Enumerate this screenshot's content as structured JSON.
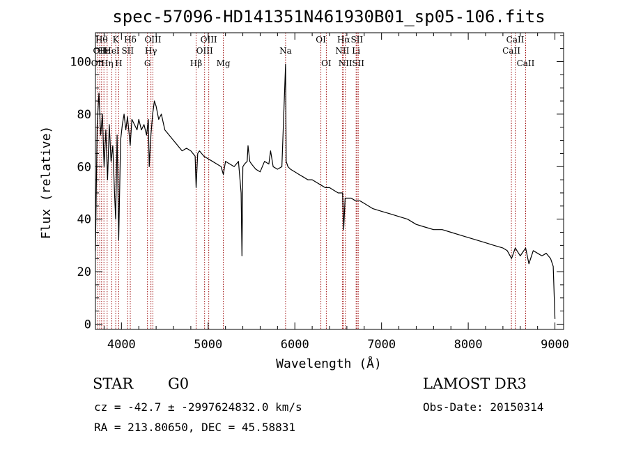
{
  "chart_data": {
    "type": "line",
    "title": "spec-57096-HD141351N461930B01_sp05-106.fits",
    "xlabel": "Wavelength (Å)",
    "ylabel": "Flux (relative)",
    "xlim": [
      3700,
      9100
    ],
    "ylim": [
      -2,
      111
    ],
    "xticks": [
      4000,
      5000,
      6000,
      7000,
      8000,
      9000
    ],
    "yticks": [
      0,
      20,
      40,
      60,
      80,
      100
    ],
    "grid": false,
    "series": [
      {
        "name": "spectrum",
        "x": [
          3700,
          3720,
          3740,
          3760,
          3780,
          3800,
          3820,
          3840,
          3860,
          3880,
          3900,
          3920,
          3933,
          3950,
          3968,
          3990,
          4010,
          4030,
          4050,
          4070,
          4090,
          4101,
          4120,
          4150,
          4180,
          4200,
          4230,
          4260,
          4290,
          4310,
          4320,
          4340,
          4360,
          4380,
          4400,
          4430,
          4460,
          4500,
          4550,
          4600,
          4650,
          4700,
          4750,
          4800,
          4850,
          4861,
          4880,
          4900,
          4950,
          5000,
          5050,
          5100,
          5150,
          5175,
          5200,
          5250,
          5300,
          5350,
          5380,
          5390,
          5400,
          5420,
          5450,
          5460,
          5480,
          5500,
          5550,
          5600,
          5650,
          5700,
          5720,
          5750,
          5800,
          5850,
          5893,
          5900,
          5920,
          5950,
          6000,
          6050,
          6100,
          6150,
          6200,
          6250,
          6300,
          6350,
          6400,
          6450,
          6500,
          6550,
          6563,
          6580,
          6600,
          6650,
          6700,
          6750,
          6800,
          6900,
          7000,
          7100,
          7200,
          7300,
          7400,
          7500,
          7600,
          7700,
          7800,
          7900,
          8000,
          8100,
          8200,
          8300,
          8400,
          8450,
          8500,
          8542,
          8600,
          8662,
          8700,
          8750,
          8800,
          8850,
          8900,
          8950,
          8980,
          9000
        ],
        "y": [
          28,
          76,
          88,
          72,
          80,
          60,
          74,
          55,
          76,
          62,
          68,
          50,
          40,
          72,
          32,
          70,
          76,
          80,
          74,
          79,
          72,
          68,
          78,
          76,
          74,
          78,
          74,
          76,
          72,
          78,
          60,
          72,
          80,
          85,
          83,
          78,
          80,
          74,
          72,
          70,
          68,
          66,
          67,
          66,
          64,
          52,
          65,
          66,
          64,
          63,
          62,
          61,
          60,
          57,
          62,
          61,
          60,
          62,
          50,
          26,
          60,
          61,
          62,
          68,
          62,
          61,
          59,
          58,
          62,
          61,
          66,
          60,
          59,
          60,
          99,
          62,
          60,
          59,
          58,
          57,
          56,
          55,
          55,
          54,
          53,
          52,
          52,
          51,
          50,
          50,
          36,
          48,
          48,
          48,
          47,
          47,
          46,
          44,
          43,
          42,
          41,
          40,
          38,
          37,
          36,
          36,
          35,
          34,
          33,
          32,
          31,
          30,
          29,
          28,
          25,
          29,
          26,
          29,
          23,
          28,
          27,
          26,
          27,
          25,
          22,
          2
        ]
      }
    ],
    "lines": [
      {
        "x": 3727,
        "labels": [
          "OII"
        ],
        "row": 3
      },
      {
        "x": 3750,
        "labels": [
          "OII"
        ],
        "row": 2
      },
      {
        "x": 3771,
        "labels": [
          "Hθ"
        ],
        "row": 1
      },
      {
        "x": 3798,
        "labels": [
          "Hε"
        ],
        "row": 2
      },
      {
        "x": 3835,
        "labels": [
          "Hη"
        ],
        "row": 3
      },
      {
        "x": 3889,
        "labels": [
          "HeI"
        ],
        "row": 2
      },
      {
        "x": 3934,
        "labels": [
          "K"
        ],
        "row": 1
      },
      {
        "x": 3969,
        "labels": [
          "H"
        ],
        "row": 3
      },
      {
        "x": 4072,
        "labels": [
          "SII"
        ],
        "row": 2
      },
      {
        "x": 4102,
        "labels": [
          "Hδ"
        ],
        "row": 1
      },
      {
        "x": 4300,
        "labels": [
          "G"
        ],
        "row": 3
      },
      {
        "x": 4340,
        "labels": [
          "Hγ"
        ],
        "row": 2
      },
      {
        "x": 4363,
        "labels": [
          "OIII"
        ],
        "row": 1
      },
      {
        "x": 4861,
        "labels": [
          "Hβ"
        ],
        "row": 3
      },
      {
        "x": 4959,
        "labels": [
          "OIII"
        ],
        "row": 2
      },
      {
        "x": 5007,
        "labels": [
          "OIII"
        ],
        "row": 1
      },
      {
        "x": 5175,
        "labels": [
          "Mg"
        ],
        "row": 3
      },
      {
        "x": 5893,
        "labels": [
          "Na"
        ],
        "row": 2
      },
      {
        "x": 6300,
        "labels": [
          "OI"
        ],
        "row": 1
      },
      {
        "x": 6363,
        "labels": [
          "OI"
        ],
        "row": 3
      },
      {
        "x": 6548,
        "labels": [
          "NII"
        ],
        "row": 2
      },
      {
        "x": 6563,
        "labels": [
          "Hα"
        ],
        "row": 1
      },
      {
        "x": 6583,
        "labels": [
          "NII"
        ],
        "row": 3
      },
      {
        "x": 6707,
        "labels": [
          "Li"
        ],
        "row": 2
      },
      {
        "x": 6716,
        "labels": [
          "SII"
        ],
        "row": 1
      },
      {
        "x": 6731,
        "labels": [
          "SII"
        ],
        "row": 3
      },
      {
        "x": 8498,
        "labels": [
          "CaII"
        ],
        "row": 2
      },
      {
        "x": 8542,
        "labels": [
          "CaII"
        ],
        "row": 1
      },
      {
        "x": 8662,
        "labels": [
          "CaII"
        ],
        "row": 3
      }
    ]
  },
  "info": {
    "class_label": "STAR",
    "subclass": "G0",
    "survey": "LAMOST DR3",
    "cz": "cz = -42.7 ± -2997624832.0 km/s",
    "obs_date": "Obs-Date: 20150314",
    "coords": "RA = 213.80650, DEC =  45.58831"
  },
  "colors": {
    "line_marker": "#a01010",
    "spectrum": "#000000"
  }
}
